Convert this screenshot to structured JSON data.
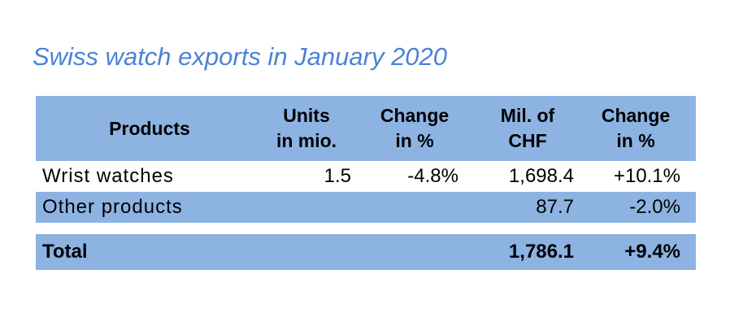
{
  "chart_data": {
    "type": "table",
    "title": "Swiss watch exports in January 2020",
    "columns": [
      {
        "line1": "Products",
        "line2": ""
      },
      {
        "line1": "Units",
        "line2": "in mio."
      },
      {
        "line1": "Change",
        "line2": "in %"
      },
      {
        "line1": "Mil. of",
        "line2": "CHF"
      },
      {
        "line1": "Change",
        "line2": "in %"
      }
    ],
    "rows": [
      {
        "product": "Wrist watches",
        "units": "1.5",
        "units_change": "-4.8%",
        "chf": "1,698.4",
        "chf_change": "+10.1%"
      },
      {
        "product": "Other products",
        "units": "",
        "units_change": "",
        "chf": "87.7",
        "chf_change": "-2.0%"
      }
    ],
    "total": {
      "product": "Total",
      "units": "",
      "units_change": "",
      "chf": "1,786.1",
      "chf_change": "+9.4%"
    },
    "colors": {
      "title": "#4b83d6",
      "band": "#8db3e2"
    }
  }
}
